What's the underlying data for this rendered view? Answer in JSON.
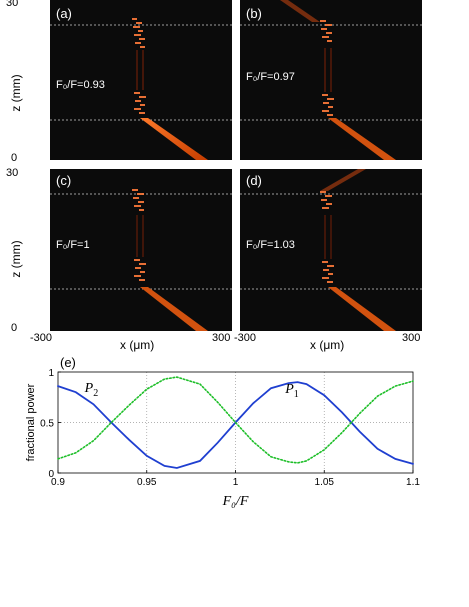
{
  "panels": [
    {
      "label": "(a)",
      "ratio_text": "F₀/F=0.93"
    },
    {
      "label": "(b)",
      "ratio_text": "F₀/F=0.97"
    },
    {
      "label": "(c)",
      "ratio_text": "F₀/F=1"
    },
    {
      "label": "(d)",
      "ratio_text": "F₀/F=1.03"
    }
  ],
  "axes": {
    "z_label": "z (mm)",
    "x_label": "x (μm)",
    "z_top": "30",
    "z_bottom": "0",
    "x_left": "-300",
    "x_right": "300"
  },
  "chart_data": {
    "type": "line",
    "panel_label": "(e)",
    "xlabel": "F₀/F",
    "ylabel": "fractional power",
    "xlim": [
      0.9,
      1.1
    ],
    "ylim": [
      0,
      1
    ],
    "x_ticks": [
      "0.9",
      "0.95",
      "1",
      "1.05",
      "1.1"
    ],
    "y_ticks": [
      "0",
      "0.5",
      "1"
    ],
    "grid": true,
    "x": [
      0.9,
      0.91,
      0.92,
      0.93,
      0.94,
      0.95,
      0.96,
      0.967,
      0.98,
      0.99,
      1.0,
      1.01,
      1.02,
      1.03,
      1.035,
      1.04,
      1.05,
      1.06,
      1.07,
      1.08,
      1.09,
      1.1
    ],
    "series": [
      {
        "name": "P1",
        "color": "#1f3fd0",
        "style": "solid",
        "values": [
          0.86,
          0.8,
          0.68,
          0.5,
          0.33,
          0.17,
          0.07,
          0.05,
          0.12,
          0.3,
          0.5,
          0.69,
          0.84,
          0.89,
          0.9,
          0.88,
          0.77,
          0.6,
          0.41,
          0.24,
          0.14,
          0.09
        ]
      },
      {
        "name": "P2",
        "color": "#1fbf2a",
        "style": "dotted",
        "values": [
          0.14,
          0.2,
          0.32,
          0.5,
          0.67,
          0.83,
          0.93,
          0.95,
          0.88,
          0.7,
          0.5,
          0.31,
          0.16,
          0.11,
          0.1,
          0.12,
          0.23,
          0.4,
          0.59,
          0.76,
          0.86,
          0.91
        ]
      }
    ],
    "series_labels": [
      {
        "series": "P2",
        "text": "P",
        "sub": "2",
        "x": 0.915,
        "y": 0.8
      },
      {
        "series": "P1",
        "text": "P",
        "sub": "1",
        "x": 1.028,
        "y": 0.79
      }
    ]
  }
}
